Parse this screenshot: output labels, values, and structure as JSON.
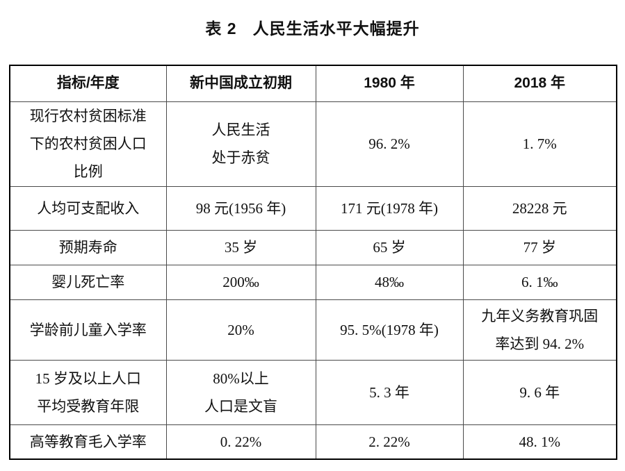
{
  "caption": {
    "label": "表 2",
    "title": "人民生活水平大幅提升"
  },
  "table": {
    "headers": [
      "指标/年度",
      "新中国成立初期",
      "1980 年",
      "2018 年"
    ],
    "rows": [
      [
        "现行农村贫困标准\n下的农村贫困人口\n比例",
        "人民生活\n处于赤贫",
        "96. 2%",
        "1. 7%"
      ],
      [
        "人均可支配收入",
        "98 元(1956 年)",
        "171 元(1978 年)",
        "28228 元"
      ],
      [
        "预期寿命",
        "35 岁",
        "65 岁",
        "77 岁"
      ],
      [
        "婴儿死亡率",
        "200‰",
        "48‰",
        "6. 1‰"
      ],
      [
        "学龄前儿童入学率",
        "20%",
        "95. 5%(1978 年)",
        "九年义务教育巩固\n率达到 94. 2%"
      ],
      [
        "15 岁及以上人口\n平均受教育年限",
        "80%以上\n人口是文盲",
        "5. 3 年",
        "9. 6 年"
      ],
      [
        "高等教育毛入学率",
        "0. 22%",
        "2. 22%",
        "48. 1%"
      ]
    ]
  },
  "colors": {
    "text": "#111111",
    "border_outer": "#000000",
    "border_inner": "#4a4a4a",
    "background": "#ffffff"
  }
}
